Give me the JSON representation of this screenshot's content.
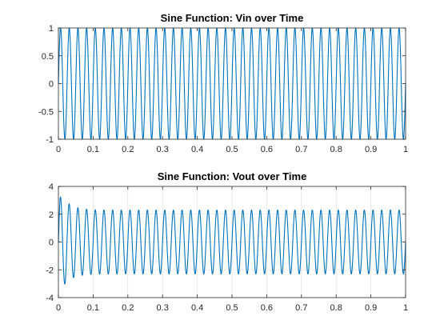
{
  "chart_data": [
    {
      "type": "line",
      "title": "Sine Function: Vin over Time",
      "xlabel": "",
      "ylabel": "",
      "xlim": [
        0,
        1
      ],
      "ylim": [
        -1,
        1
      ],
      "xticks": [
        0,
        0.1,
        0.2,
        0.3,
        0.4,
        0.5,
        0.6,
        0.7,
        0.8,
        0.9,
        1
      ],
      "xtick_labels": [
        "0",
        "0.1",
        "0.2",
        "0.3",
        "0.4",
        "0.5",
        "0.6",
        "0.7",
        "0.8",
        "0.9",
        "1"
      ],
      "yticks": [
        -1,
        -0.5,
        0,
        0.5,
        1
      ],
      "ytick_labels": [
        "-1",
        "-0.5",
        "0",
        "0.5",
        "1"
      ],
      "grid": "y-only",
      "color": "#0072bd",
      "series": [
        {
          "function": "sine",
          "amplitude": 1,
          "frequency_hz": 40,
          "offset": 0
        }
      ]
    },
    {
      "type": "line",
      "title": "Sine Function: Vout over Time",
      "xlabel": "",
      "ylabel": "",
      "xlim": [
        0,
        1
      ],
      "ylim": [
        -4,
        4
      ],
      "xticks": [
        0,
        0.1,
        0.2,
        0.3,
        0.4,
        0.5,
        0.6,
        0.7,
        0.8,
        0.9,
        1
      ],
      "xtick_labels": [
        "0",
        "0.1",
        "0.2",
        "0.3",
        "0.4",
        "0.5",
        "0.6",
        "0.7",
        "0.8",
        "0.9",
        "1"
      ],
      "yticks": [
        -4,
        -2,
        0,
        2,
        4
      ],
      "ytick_labels": [
        "-4",
        "-2",
        "0",
        "2",
        "4"
      ],
      "grid": "both",
      "color": "#0072bd",
      "series": [
        {
          "function": "sine",
          "amplitude": 2.3,
          "frequency_hz": 40,
          "offset": 0,
          "initial_peak": 3.3,
          "transient_settles_by": 0.1
        }
      ]
    }
  ]
}
